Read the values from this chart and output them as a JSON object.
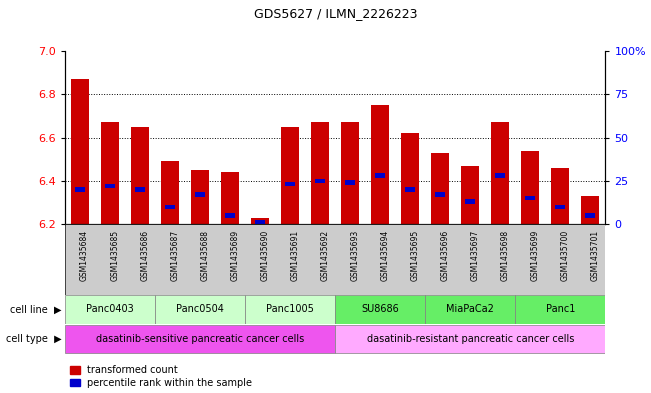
{
  "title": "GDS5627 / ILMN_2226223",
  "samples": [
    "GSM1435684",
    "GSM1435685",
    "GSM1435686",
    "GSM1435687",
    "GSM1435688",
    "GSM1435689",
    "GSM1435690",
    "GSM1435691",
    "GSM1435692",
    "GSM1435693",
    "GSM1435694",
    "GSM1435695",
    "GSM1435696",
    "GSM1435697",
    "GSM1435698",
    "GSM1435699",
    "GSM1435700",
    "GSM1435701"
  ],
  "red_values": [
    6.87,
    6.67,
    6.65,
    6.49,
    6.45,
    6.44,
    6.23,
    6.65,
    6.67,
    6.67,
    6.75,
    6.62,
    6.53,
    6.47,
    6.67,
    6.54,
    6.46,
    6.33
  ],
  "blue_values_pct": [
    20,
    22,
    20,
    10,
    17,
    5,
    1,
    23,
    25,
    24,
    28,
    20,
    17,
    13,
    28,
    15,
    10,
    5
  ],
  "ylim_left": [
    6.2,
    7.0
  ],
  "ylim_right": [
    0,
    100
  ],
  "yticks_left": [
    6.2,
    6.4,
    6.6,
    6.8,
    7.0
  ],
  "yticks_right": [
    0,
    25,
    50,
    75,
    100
  ],
  "grid_values": [
    6.4,
    6.6,
    6.8
  ],
  "cell_lines": [
    {
      "name": "Panc0403",
      "start": 0,
      "end": 3,
      "color": "#ccffcc"
    },
    {
      "name": "Panc0504",
      "start": 3,
      "end": 6,
      "color": "#ccffcc"
    },
    {
      "name": "Panc1005",
      "start": 6,
      "end": 9,
      "color": "#ccffcc"
    },
    {
      "name": "SU8686",
      "start": 9,
      "end": 12,
      "color": "#66ee66"
    },
    {
      "name": "MiaPaCa2",
      "start": 12,
      "end": 15,
      "color": "#66ee66"
    },
    {
      "name": "Panc1",
      "start": 15,
      "end": 18,
      "color": "#66ee66"
    }
  ],
  "cell_types": [
    {
      "name": "dasatinib-sensitive pancreatic cancer cells",
      "start": 0,
      "end": 9,
      "color": "#ee55ee"
    },
    {
      "name": "dasatinib-resistant pancreatic cancer cells",
      "start": 9,
      "end": 18,
      "color": "#ffaaff"
    }
  ],
  "bar_width": 0.6,
  "base_value": 6.2,
  "red_color": "#cc0000",
  "blue_color": "#0000cc",
  "tick_bg_color": "#cccccc",
  "left_label_color": "red",
  "right_label_color": "blue"
}
